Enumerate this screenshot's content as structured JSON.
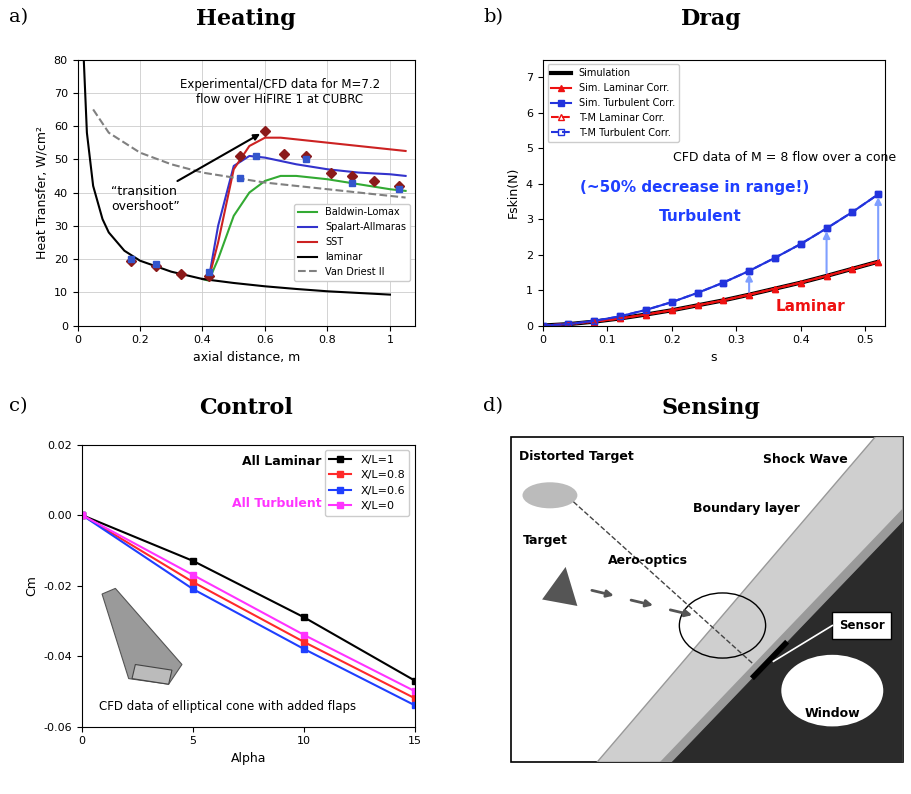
{
  "chart_data": [
    {
      "type": "line",
      "panel_label": "a)",
      "title": "Heating",
      "xlabel": "axial distance, m",
      "ylabel": "Heat Transfer, W/cm²",
      "xlim": [
        0,
        1.08
      ],
      "ylim": [
        0,
        80
      ],
      "xticks": [
        0,
        0.2,
        0.4,
        0.6,
        0.8,
        1
      ],
      "yticks": [
        0,
        10,
        20,
        30,
        40,
        50,
        60,
        70,
        80
      ],
      "grid": true,
      "legend": "lower right",
      "annotations": [
        {
          "text": "Experimental/CFD data for M=7.2\nflow over HiFIRE 1 at CUBRC",
          "color": "#000000"
        },
        {
          "text": "“transition\novershoot”",
          "color": "#000000"
        }
      ],
      "series": [
        {
          "name": "Baldwin-Lomax",
          "color": "#33aa33",
          "line_style": "solid",
          "marker": "none",
          "x": [
            0.4,
            0.42,
            0.45,
            0.5,
            0.55,
            0.6,
            0.65,
            0.7,
            0.8,
            0.9,
            1.0,
            1.05
          ],
          "values": [
            14,
            13.5,
            20,
            33,
            40,
            43.5,
            45,
            45,
            44,
            42.5,
            41,
            40.5
          ]
        },
        {
          "name": "Spalart-Allmaras",
          "color": "#3333cc",
          "line_style": "solid",
          "marker": "none",
          "x": [
            0.4,
            0.42,
            0.45,
            0.5,
            0.55,
            0.6,
            0.65,
            0.7,
            0.8,
            0.9,
            1.0,
            1.05
          ],
          "values": [
            14,
            14,
            30,
            48,
            51,
            50.5,
            49.5,
            48.5,
            47,
            46,
            45.5,
            45
          ]
        },
        {
          "name": "SST",
          "color": "#cc2222",
          "line_style": "solid",
          "marker": "none",
          "x": [
            0.4,
            0.42,
            0.45,
            0.5,
            0.55,
            0.6,
            0.65,
            0.7,
            0.8,
            0.9,
            1.0,
            1.05
          ],
          "values": [
            14,
            14,
            25,
            47,
            54,
            56.5,
            56.5,
            56,
            55,
            54,
            53,
            52.5
          ]
        },
        {
          "name": "laminar",
          "color": "#000000",
          "line_style": "solid",
          "marker": "none",
          "x": [
            0.02,
            0.03,
            0.05,
            0.08,
            0.1,
            0.15,
            0.2,
            0.3,
            0.4,
            0.5,
            0.6,
            0.7,
            0.8,
            0.9,
            1.0
          ],
          "values": [
            80,
            58,
            42,
            32,
            28,
            22.5,
            19.5,
            16.2,
            14,
            12.8,
            11.8,
            11,
            10.3,
            9.8,
            9.3
          ]
        },
        {
          "name": "Van Driest II",
          "color": "#808080",
          "line_style": "dashed",
          "marker": "none",
          "x": [
            0.05,
            0.1,
            0.2,
            0.3,
            0.4,
            0.5,
            0.6,
            0.7,
            0.8,
            0.9,
            1.0,
            1.05
          ],
          "values": [
            65,
            58,
            52,
            48.5,
            46,
            44.5,
            43,
            42,
            41,
            40,
            39,
            38.5
          ]
        },
        {
          "type": "scatter",
          "color": "#8b1a1a",
          "marker": "diamond",
          "x": [
            0.17,
            0.25,
            0.33,
            0.42,
            0.52,
            0.6,
            0.66,
            0.73,
            0.81,
            0.88,
            0.95,
            1.03
          ],
          "values": [
            19.5,
            18,
            15.5,
            15,
            51,
            58.5,
            51.5,
            51,
            46,
            45,
            43.5,
            42
          ]
        },
        {
          "type": "scatter",
          "color": "#3355cc",
          "marker": "square",
          "x": [
            0.17,
            0.25,
            0.42,
            0.52,
            0.57,
            0.73,
            0.88,
            1.03
          ],
          "values": [
            20,
            18.5,
            16,
            44.5,
            51,
            50,
            43,
            41
          ]
        }
      ]
    },
    {
      "type": "line",
      "panel_label": "b)",
      "title": "Drag",
      "xlabel": "s",
      "ylabel": "Fskin(N)",
      "xlim": [
        0,
        0.53
      ],
      "ylim": [
        0,
        7.5
      ],
      "xticks": [
        0,
        0.1,
        0.2,
        0.3,
        0.4,
        0.5
      ],
      "yticks": [
        0,
        1,
        2,
        3,
        4,
        5,
        6,
        7
      ],
      "grid": false,
      "legend": "upper left",
      "annotations": [
        {
          "text": "CFD data of M = 8 flow over a cone",
          "color": "#000000"
        },
        {
          "text": "(~50% decrease in range!)",
          "color": "#1f3fff"
        },
        {
          "text": "Turbulent",
          "color": "#1f3fff"
        },
        {
          "text": "Laminar",
          "color": "#ee1111"
        }
      ],
      "x": [
        0,
        0.04,
        0.08,
        0.12,
        0.16,
        0.2,
        0.24,
        0.28,
        0.32,
        0.36,
        0.4,
        0.44,
        0.48,
        0.52
      ],
      "series": [
        {
          "name": "Simulation",
          "color": "#000000",
          "line_style": "solid",
          "marker": "none",
          "values": [
            0,
            0.04,
            0.11,
            0.2,
            0.31,
            0.43,
            0.57,
            0.71,
            0.87,
            1.04,
            1.21,
            1.4,
            1.6,
            1.8
          ]
        },
        {
          "name": "Sim. Laminar Corr.",
          "color": "#ee1111",
          "line_style": "solid",
          "marker": "triangle",
          "values": [
            0,
            0.04,
            0.11,
            0.2,
            0.31,
            0.43,
            0.57,
            0.71,
            0.87,
            1.04,
            1.21,
            1.4,
            1.6,
            1.8
          ]
        },
        {
          "name": "Sim. Turbulent Corr.",
          "color": "#2233dd",
          "line_style": "solid",
          "marker": "square",
          "values": [
            0,
            0.04,
            0.13,
            0.26,
            0.44,
            0.66,
            0.92,
            1.21,
            1.54,
            1.91,
            2.3,
            2.74,
            3.2,
            3.7
          ]
        },
        {
          "name": "T-M Laminar Corr.",
          "color": "#ee1111",
          "line_style": "dashed",
          "marker": "open_triangle",
          "values": [
            0,
            0.04,
            0.11,
            0.2,
            0.31,
            0.43,
            0.57,
            0.71,
            0.87,
            1.04,
            1.21,
            1.4,
            1.6,
            1.8
          ]
        },
        {
          "name": "T-M Turbulent Corr.",
          "color": "#2233dd",
          "line_style": "dashed",
          "marker": "open_square",
          "values": [
            0,
            0.04,
            0.13,
            0.26,
            0.44,
            0.66,
            0.92,
            1.21,
            1.54,
            1.91,
            2.3,
            2.74,
            3.2,
            3.7
          ]
        }
      ]
    },
    {
      "type": "line",
      "panel_label": "c)",
      "title": "Control",
      "xlabel": "Alpha",
      "ylabel": "Cm",
      "xlim": [
        0,
        15
      ],
      "ylim": [
        -0.06,
        0.02
      ],
      "xticks": [
        0,
        5,
        10,
        15
      ],
      "yticks": [
        -0.06,
        -0.04,
        -0.02,
        {
          "value": 0,
          "label": "0.00"
        },
        0.02
      ],
      "grid": false,
      "legend": "upper right",
      "annotations": [
        {
          "text": "All Laminar",
          "color": "#000000"
        },
        {
          "text": "All Turbulent",
          "color": "#ff33ff"
        },
        {
          "text": "CFD data of elliptical cone with added flaps",
          "color": "#000000"
        }
      ],
      "x": [
        0,
        5,
        10,
        15
      ],
      "series": [
        {
          "name": "X/L=1",
          "color": "#000000",
          "line_style": "solid",
          "marker": "square",
          "values": [
            0,
            -0.013,
            -0.029,
            -0.047
          ]
        },
        {
          "name": "X/L=0.8",
          "color": "#ff2a2a",
          "line_style": "solid",
          "marker": "square",
          "values": [
            0,
            -0.019,
            -0.036,
            -0.052
          ]
        },
        {
          "name": "X/L=0.6",
          "color": "#1f3fff",
          "line_style": "solid",
          "marker": "square",
          "values": [
            0,
            -0.021,
            -0.038,
            -0.054
          ]
        },
        {
          "name": "X/L=0",
          "color": "#ff33ff",
          "line_style": "solid",
          "marker": "square",
          "values": [
            0,
            -0.017,
            -0.034,
            -0.05
          ]
        }
      ]
    }
  ],
  "diagram": {
    "panel_label": "d)",
    "title": "Sensing",
    "labels": {
      "distorted_target": "Distorted Target",
      "target": "Target",
      "shock_wave": "Shock Wave",
      "aero_optics": "Aero-optics",
      "boundary_layer": "Boundary layer",
      "window": "Window",
      "sensor": "Sensor"
    }
  }
}
